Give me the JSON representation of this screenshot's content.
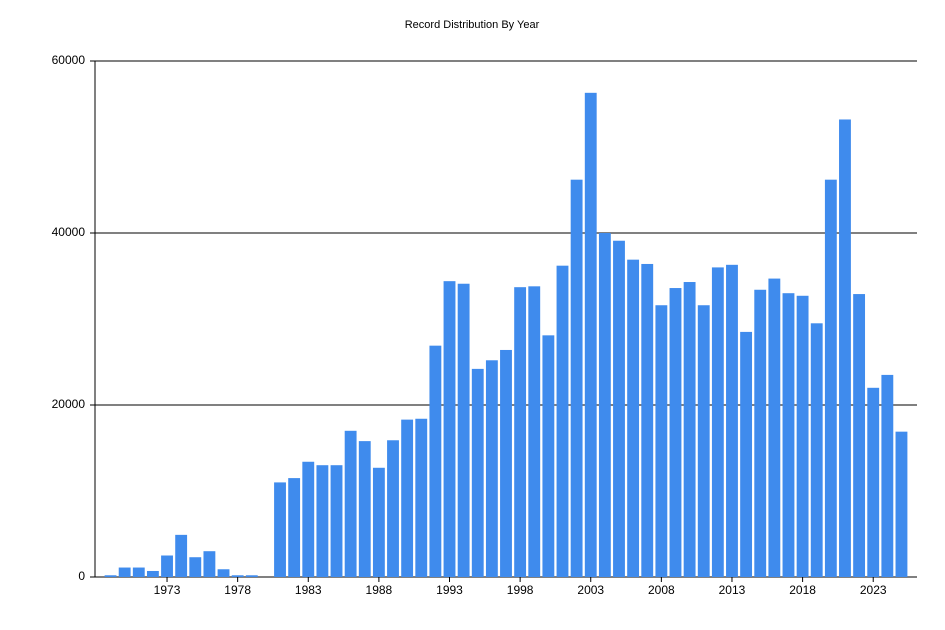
{
  "chart_data": {
    "type": "bar",
    "title": "Record Distribution By Year",
    "color": "#3f8bed",
    "grid": true,
    "x": [
      1969,
      1970,
      1971,
      1972,
      1973,
      1974,
      1975,
      1976,
      1977,
      1978,
      1979,
      1980,
      1981,
      1982,
      1983,
      1984,
      1985,
      1986,
      1987,
      1988,
      1989,
      1990,
      1991,
      1992,
      1993,
      1994,
      1995,
      1996,
      1997,
      1998,
      1999,
      2000,
      2001,
      2002,
      2003,
      2004,
      2005,
      2006,
      2007,
      2008,
      2009,
      2010,
      2011,
      2012,
      2013,
      2014,
      2015,
      2016,
      2017,
      2018,
      2019,
      2020,
      2021,
      2022,
      2023,
      2024,
      2025
    ],
    "values": [
      200,
      1100,
      1100,
      700,
      2500,
      4900,
      2300,
      3000,
      900,
      200,
      200,
      0,
      11000,
      11500,
      13400,
      13000,
      13000,
      17000,
      15800,
      12700,
      15900,
      18300,
      18400,
      26900,
      34400,
      34100,
      24200,
      25200,
      26400,
      33700,
      33800,
      28100,
      36200,
      46200,
      56300,
      40000,
      39100,
      36900,
      36400,
      31600,
      33600,
      34300,
      31600,
      36000,
      36300,
      28500,
      33400,
      34700,
      33000,
      32700,
      29500,
      46200,
      53200,
      32900,
      22000,
      23500,
      16900
    ],
    "xlim": [
      1967.9,
      2026.1
    ],
    "xticks": [
      1973,
      1978,
      1983,
      1988,
      1993,
      1998,
      2003,
      2008,
      2013,
      2018,
      2023
    ],
    "ylim": [
      0,
      60000
    ],
    "yticks": [
      0,
      20000,
      40000,
      60000
    ]
  }
}
